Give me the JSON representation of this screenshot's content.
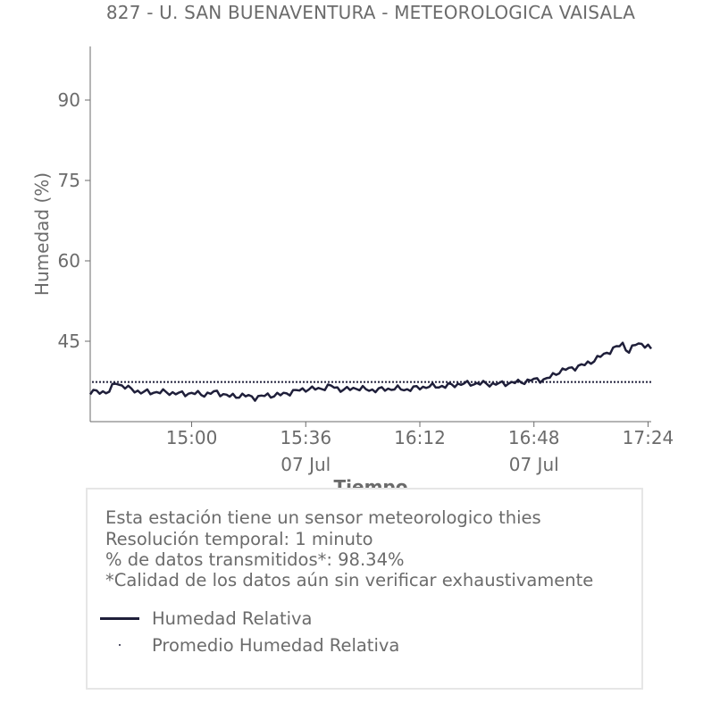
{
  "chart_data": {
    "type": "line",
    "title": "827 - U. SAN BUENAVENTURA - METEOROLOGICA VAISALA",
    "xlabel": "Tiempo",
    "ylabel": "Humedad (%)",
    "ylim": [
      30,
      100
    ],
    "yticks": [
      45,
      60,
      75,
      90
    ],
    "xlim": [
      "14:28",
      "17:25"
    ],
    "xticks": [
      {
        "time": "15:00",
        "label": "15:00",
        "sublabel": ""
      },
      {
        "time": "15:36",
        "label": "15:36",
        "sublabel": "07 Jul"
      },
      {
        "time": "16:12",
        "label": "16:12",
        "sublabel": ""
      },
      {
        "time": "16:48",
        "label": "16:48",
        "sublabel": "07 Jul"
      },
      {
        "time": "17:24",
        "label": "17:24",
        "sublabel": ""
      }
    ],
    "grid": false,
    "series": [
      {
        "name": "Humedad Relativa",
        "color": "#1f1f3a",
        "style": "solid",
        "points": [
          [
            "14:28",
            35.5
          ],
          [
            "14:34",
            35.6
          ],
          [
            "14:36",
            37.3
          ],
          [
            "14:40",
            36.2
          ],
          [
            "14:44",
            35.5
          ],
          [
            "14:48",
            35.5
          ],
          [
            "14:52",
            35.5
          ],
          [
            "14:56",
            35.2
          ],
          [
            "15:00",
            35.3
          ],
          [
            "15:04",
            35.1
          ],
          [
            "15:08",
            35.5
          ],
          [
            "15:12",
            34.7
          ],
          [
            "15:16",
            34.9
          ],
          [
            "15:20",
            34.5
          ],
          [
            "15:24",
            34.9
          ],
          [
            "15:28",
            35.0
          ],
          [
            "15:32",
            35.6
          ],
          [
            "15:36",
            36.1
          ],
          [
            "15:40",
            36.1
          ],
          [
            "15:44",
            36.6
          ],
          [
            "15:48",
            35.9
          ],
          [
            "15:52",
            36.3
          ],
          [
            "15:56",
            35.9
          ],
          [
            "16:00",
            36.0
          ],
          [
            "16:04",
            36.2
          ],
          [
            "16:08",
            36.0
          ],
          [
            "16:12",
            36.4
          ],
          [
            "16:16",
            36.6
          ],
          [
            "16:20",
            36.6
          ],
          [
            "16:24",
            37.0
          ],
          [
            "16:28",
            37.1
          ],
          [
            "16:32",
            37.1
          ],
          [
            "16:36",
            37.0
          ],
          [
            "16:40",
            37.2
          ],
          [
            "16:44",
            37.4
          ],
          [
            "16:48",
            37.8
          ],
          [
            "16:52",
            37.9
          ],
          [
            "16:56",
            39.4
          ],
          [
            "17:00",
            40.0
          ],
          [
            "17:04",
            40.6
          ],
          [
            "17:08",
            41.8
          ],
          [
            "17:12",
            43.2
          ],
          [
            "17:16",
            44.5
          ],
          [
            "17:18",
            43.0
          ],
          [
            "17:20",
            44.4
          ],
          [
            "17:22",
            44.6
          ],
          [
            "17:25",
            43.6
          ]
        ]
      },
      {
        "name": "Promedio Humedad Relativa",
        "color": "#1f1f3a",
        "style": "dotted",
        "value": 37.4
      }
    ],
    "legend_position": "bottom"
  },
  "info": {
    "line1": "Esta estación tiene un sensor meteorologico thies",
    "line2": "Resolución temporal: 1 minuto",
    "line3": "% de datos transmitidos*: 98.34%",
    "line4": "*Calidad de los datos aún sin verificar exhaustivamente"
  },
  "legend": {
    "item1": "Humedad Relativa",
    "item2": "Promedio Humedad Relativa"
  }
}
